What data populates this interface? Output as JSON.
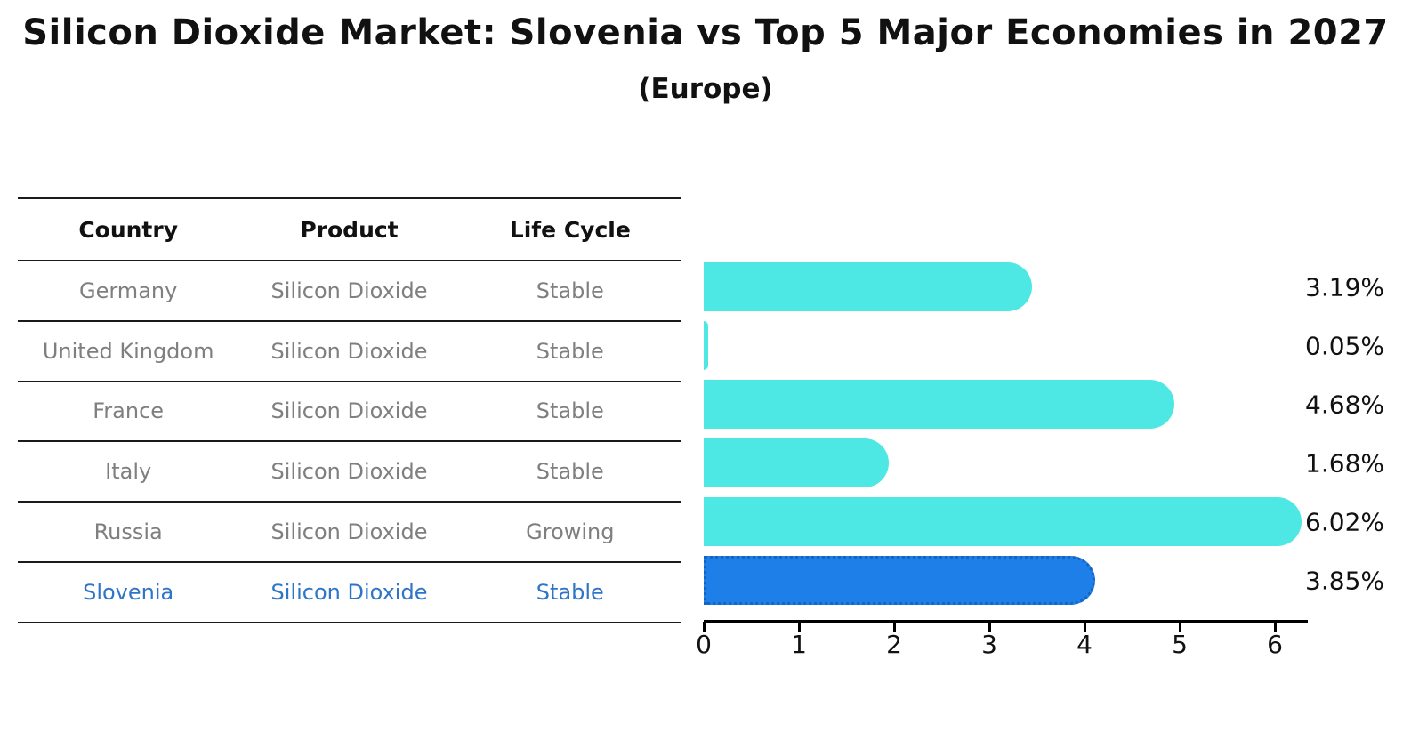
{
  "title": "Silicon Dioxide Market: Slovenia vs Top 5 Major Economies in 2027",
  "subtitle": "(Europe)",
  "table": {
    "headers": [
      "Country",
      "Product",
      "Life Cycle"
    ],
    "rows": [
      {
        "country": "Germany",
        "product": "Silicon Dioxide",
        "life_cycle": "Stable",
        "highlight": false
      },
      {
        "country": "United Kingdom",
        "product": "Silicon Dioxide",
        "life_cycle": "Stable",
        "highlight": false
      },
      {
        "country": "France",
        "product": "Silicon Dioxide",
        "life_cycle": "Stable",
        "highlight": false
      },
      {
        "country": "Italy",
        "product": "Silicon Dioxide",
        "life_cycle": "Stable",
        "highlight": false
      },
      {
        "country": "Russia",
        "product": "Silicon Dioxide",
        "life_cycle": "Growing",
        "highlight": false
      },
      {
        "country": "Slovenia",
        "product": "Silicon Dioxide",
        "life_cycle": "Stable",
        "highlight": true
      }
    ]
  },
  "chart_data": {
    "type": "bar",
    "orientation": "horizontal",
    "categories": [
      "Germany",
      "United Kingdom",
      "France",
      "Italy",
      "Russia",
      "Slovenia"
    ],
    "values": [
      3.19,
      0.05,
      4.68,
      1.68,
      6.02,
      3.85
    ],
    "value_labels": [
      "3.19%",
      "0.05%",
      "4.68%",
      "1.68%",
      "6.02%",
      "3.85%"
    ],
    "x_ticks": [
      0,
      1,
      2,
      3,
      4,
      5,
      6
    ],
    "xlim": [
      0,
      6.35
    ],
    "highlight_index": 5,
    "bar_color": "#4DE8E3",
    "highlight_bar_color": "#1E7FE8",
    "highlight_border_color": "#1565C0",
    "grid": false,
    "legend": "none"
  },
  "colors": {
    "header_text": "#111111",
    "row_text": "#7f7f7f",
    "highlight_text": "#2e75c8",
    "table_line": "#1a1a1a",
    "axis": "#000000"
  }
}
